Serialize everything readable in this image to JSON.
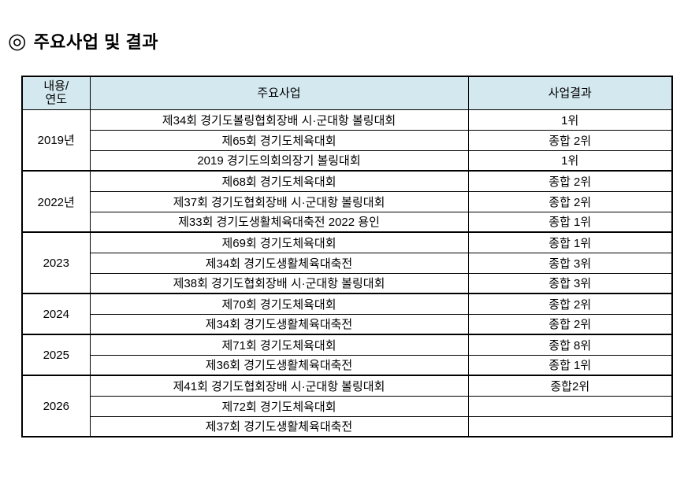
{
  "page": {
    "title_bullet": "◎",
    "title": "주요사업 및 결과"
  },
  "table": {
    "header_bg": "#d3e8ef",
    "headers": [
      "내용/\n연도",
      "주요사업",
      "사업결과"
    ],
    "groups": [
      {
        "year": "2019년",
        "rows": [
          {
            "project": "제34회 경기도볼링협회장배 시·군대항 볼링대회",
            "result": "1위"
          },
          {
            "project": "제65회 경기도체육대회",
            "result": "종합 2위"
          },
          {
            "project": "2019 경기도의회의장기 볼링대회",
            "result": "1위"
          }
        ]
      },
      {
        "year": "2022년",
        "rows": [
          {
            "project": "제68회 경기도체육대회",
            "result": "종합 2위"
          },
          {
            "project": "제37회 경기도협회장배 시·군대항 볼링대회",
            "result": "종합 2위"
          },
          {
            "project": "제33회 경기도생활체육대축전 2022 용인",
            "result": "종합 1위"
          }
        ]
      },
      {
        "year": "2023",
        "rows": [
          {
            "project": "제69회 경기도체육대회",
            "result": "종합 1위"
          },
          {
            "project": "제34회 경기도생활체육대축전",
            "result": "종합 3위"
          },
          {
            "project": "제38회 경기도협회장배 시·군대항 볼링대회",
            "result": "종합 3위"
          }
        ]
      },
      {
        "year": "2024",
        "rows": [
          {
            "project": "제70회 경기도체육대회",
            "result": "종합 2위"
          },
          {
            "project": "제34회 경기도생활체육대축전",
            "result": "종합 2위"
          }
        ]
      },
      {
        "year": "2025",
        "rows": [
          {
            "project": "제71회 경기도체육대회",
            "result": "종합 8위"
          },
          {
            "project": "제36회 경기도생활체육대축전",
            "result": "종합 1위"
          }
        ]
      },
      {
        "year": "2026",
        "rows": [
          {
            "project": "제41회 경기도협회장배 시·군대항 볼링대회",
            "result": "종합2위"
          },
          {
            "project": "제72회 경기도체육대회",
            "result": ""
          },
          {
            "project": "제37회 경기도생활체육대축전",
            "result": ""
          }
        ]
      }
    ]
  }
}
